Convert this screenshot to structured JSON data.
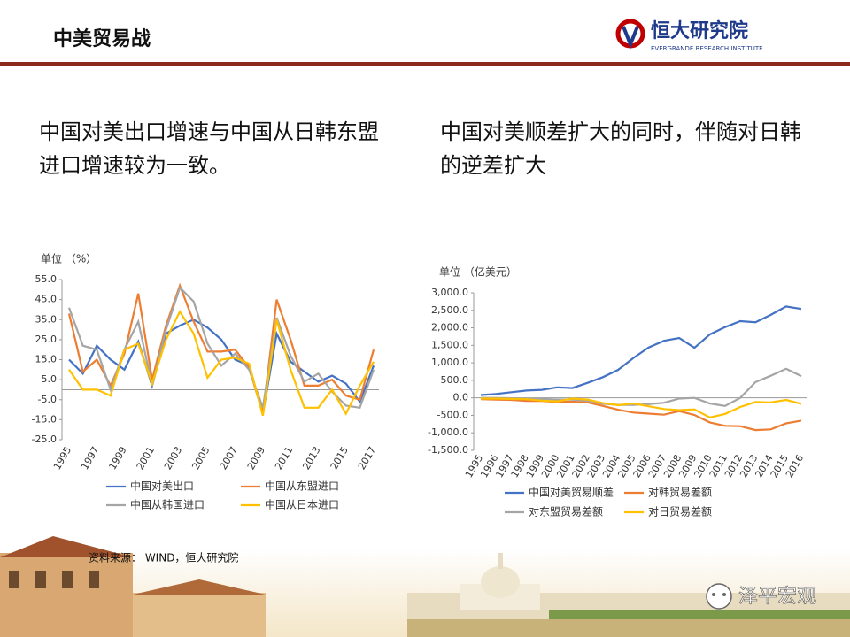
{
  "header": {
    "title": "中美贸易战",
    "logo_name": "恒大研究院",
    "logo_sub": "EVERGRANDE RESEARCH INSTITUTE"
  },
  "captions": [
    "中国对美出口增速与中国从日韩东盟进口增速较为一致。",
    "中国对美顺差扩大的同时，伴随对日韩的逆差扩大"
  ],
  "source": "资料来源： WIND，恒大研究院",
  "watermark": "泽平宏观",
  "chart_data": [
    {
      "type": "line",
      "unit_label": "单位 （%）",
      "categories": [
        "1995",
        null,
        "1997",
        null,
        "1999",
        null,
        "2001",
        null,
        "2003",
        null,
        "2005",
        null,
        "2007",
        null,
        "2009",
        null,
        "2011",
        null,
        "2013",
        null,
        "2015",
        null,
        "2017"
      ],
      "ylim": [
        -25,
        55
      ],
      "yticks": [
        {
          "value": 55,
          "label": "55.0"
        },
        {
          "value": 45,
          "label": "45.0"
        },
        {
          "value": 35,
          "label": "35.0"
        },
        {
          "value": 25,
          "label": "25.0"
        },
        {
          "value": 15,
          "label": "15.0"
        },
        {
          "value": 5,
          "label": "5.0"
        },
        {
          "value": -5,
          "label": "-5.0"
        },
        {
          "value": -15,
          "label": "-15.0"
        },
        {
          "value": -25,
          "label": "-25.0"
        }
      ],
      "legend": "bottom",
      "series": [
        {
          "name": "中国对美出口",
          "color": "#4472c4",
          "values": [
            15,
            8,
            22,
            15,
            10,
            24,
            2,
            28,
            32,
            35,
            31,
            25,
            15,
            12,
            -12,
            28,
            14,
            9,
            4,
            7,
            3,
            -6,
            12
          ]
        },
        {
          "name": "中国从东盟进口",
          "color": "#ed7d31",
          "values": [
            38,
            9,
            15,
            2,
            18,
            48,
            5,
            32,
            52,
            34,
            19,
            19,
            20,
            11,
            -12,
            45,
            25,
            2,
            2,
            5,
            -3,
            -5,
            20
          ]
        },
        {
          "name": "中国从韩国进口",
          "color": "#a5a5a5",
          "values": [
            41,
            22,
            20,
            0,
            20,
            34,
            2,
            30,
            51,
            44,
            23,
            12,
            18,
            10,
            -9,
            36,
            17,
            4,
            8,
            -1,
            -8,
            -9,
            10
          ]
        },
        {
          "name": "中国从日本进口",
          "color": "#ffc000",
          "values": [
            10,
            0,
            0,
            -3,
            20,
            23,
            3,
            25,
            39,
            28,
            6,
            15,
            16,
            13,
            -13,
            35,
            10,
            -9,
            -9,
            0,
            -12,
            2,
            14
          ]
        }
      ]
    },
    {
      "type": "line",
      "unit_label": "单位 （亿美元）",
      "categories": [
        "1995",
        "1996",
        "1997",
        "1998",
        "1999",
        "2000",
        "2001",
        "2002",
        "2003",
        "2004",
        "2005",
        "2006",
        "2007",
        "2008",
        "2009",
        "2010",
        "2011",
        "2012",
        "2013",
        "2014",
        "2015",
        "2016"
      ],
      "ylim": [
        -1500,
        3000
      ],
      "yticks": [
        {
          "value": 3000,
          "label": "3,000.0"
        },
        {
          "value": 2500,
          "label": "2,500.0"
        },
        {
          "value": 2000,
          "label": "2,000.0"
        },
        {
          "value": 1500,
          "label": "1,500.0"
        },
        {
          "value": 1000,
          "label": "1,000.0"
        },
        {
          "value": 500,
          "label": "500.0"
        },
        {
          "value": 0,
          "label": "0.0"
        },
        {
          "value": -500,
          "label": "-500.0"
        },
        {
          "value": -1000,
          "label": "-1,000.0"
        },
        {
          "value": -1500,
          "label": "-1,500.0"
        }
      ],
      "legend": "bottom",
      "series": [
        {
          "name": "中国对美贸易顺差",
          "color": "#4472c4",
          "values": [
            80,
            110,
            160,
            210,
            230,
            300,
            280,
            430,
            590,
            800,
            1140,
            1440,
            1630,
            1710,
            1430,
            1810,
            2020,
            2190,
            2160,
            2370,
            2610,
            2540
          ]
        },
        {
          "name": "对韩贸易差额",
          "color": "#ed7d31",
          "values": [
            -40,
            -50,
            -60,
            -90,
            -90,
            -120,
            -110,
            -130,
            -230,
            -340,
            -420,
            -450,
            -480,
            -380,
            -490,
            -700,
            -800,
            -810,
            -920,
            -900,
            -730,
            -650
          ]
        },
        {
          "name": "对东盟贸易差额",
          "color": "#a5a5a5",
          "values": [
            0,
            0,
            -10,
            -20,
            -30,
            -50,
            -50,
            -80,
            -170,
            -200,
            -200,
            -180,
            -140,
            -20,
            0,
            -160,
            -230,
            0,
            450,
            630,
            830,
            620
          ]
        },
        {
          "name": "对日贸易差额",
          "color": "#ffc000",
          "values": [
            -20,
            -20,
            -30,
            -40,
            -80,
            -100,
            -20,
            -50,
            -150,
            -210,
            -160,
            -240,
            -320,
            -350,
            -330,
            -560,
            -460,
            -260,
            -120,
            -130,
            -60,
            -170
          ]
        }
      ]
    }
  ]
}
